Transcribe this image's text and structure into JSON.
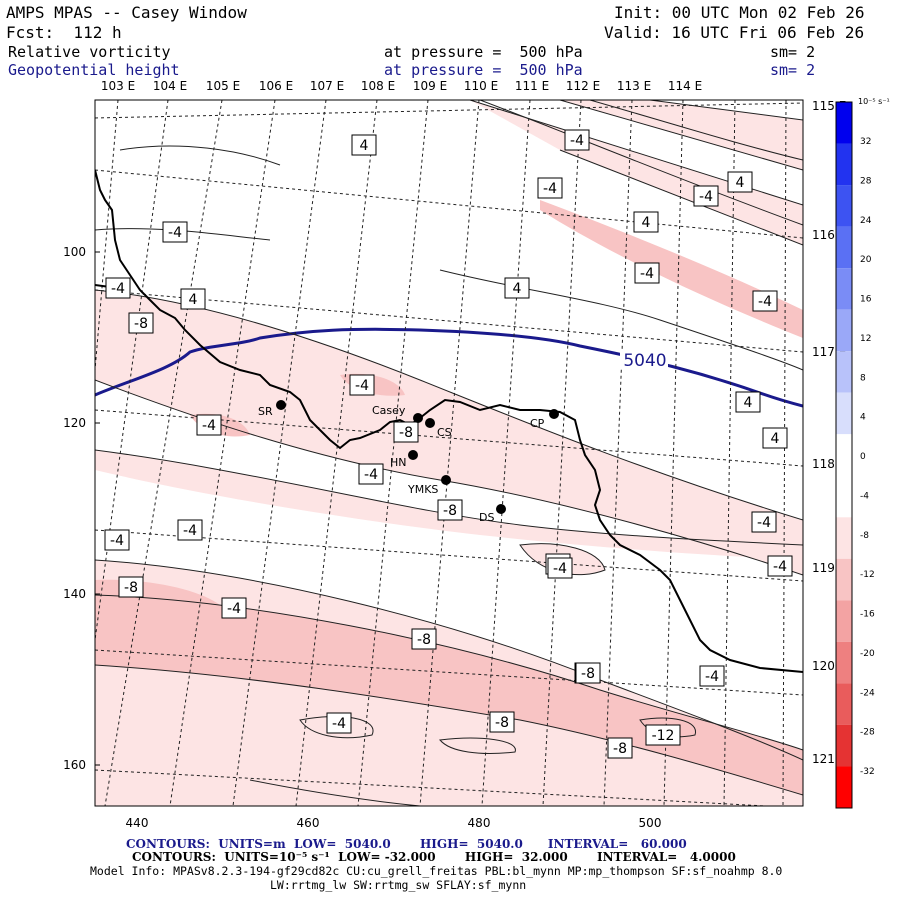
{
  "header": {
    "title": "AMPS MPAS -- Casey Window",
    "forecast": "Fcst:  112 h",
    "init": "Init: 00 UTC Mon 02 Feb 26",
    "valid": "Valid: 16 UTC Fri 06 Feb 26",
    "field1": {
      "name": "Relative vorticity",
      "pressure": "at pressure =  500 hPa",
      "smooth": "sm= 2"
    },
    "field2": {
      "name": "Geopotential height",
      "pressure": "at pressure =  500 hPa",
      "smooth": "sm= 2"
    }
  },
  "axes": {
    "top_longitudes": [
      "103 E",
      "104 E",
      "105 E",
      "106 E",
      "107 E",
      "108 E",
      "109 E",
      "110 E",
      "111 E",
      "112 E",
      "113 E",
      "114 E"
    ],
    "right_latitudes": [
      "115 E",
      "116 E",
      "117 E",
      "118 E",
      "119 E",
      "120 E",
      "121 E"
    ],
    "left_ticks": [
      "100",
      "120",
      "140",
      "160"
    ],
    "bottom_ticks": [
      "440",
      "460",
      "480",
      "500"
    ]
  },
  "colorbar": {
    "unit": "10⁻⁵ s⁻¹",
    "labels": [
      "32",
      "28",
      "24",
      "20",
      "16",
      "12",
      "8",
      "4",
      "0",
      "-4",
      "-8",
      "-12",
      "-16",
      "-20",
      "-24",
      "-28",
      "-32"
    ],
    "colors": [
      "#0000ee",
      "#2233f0",
      "#3d53f2",
      "#5a70f4",
      "#7a8cf6",
      "#9aa8f8",
      "#b8c2fa",
      "#d8defc",
      "#ffffff",
      "#ffffff",
      "#fde4e4",
      "#f8c4c4",
      "#f3a3a3",
      "#ee8080",
      "#e95c5c",
      "#e53333",
      "#ff0000"
    ]
  },
  "stations": [
    {
      "name": "SR"
    },
    {
      "name": "Casey"
    },
    {
      "name": "CS"
    },
    {
      "name": "HN"
    },
    {
      "name": "YMKS"
    },
    {
      "name": "DS"
    },
    {
      "name": "CP"
    }
  ],
  "contour_labels": {
    "geopotential": [
      "5040"
    ],
    "vorticity": [
      "4",
      "-4",
      "-4",
      "-4",
      "4",
      "-4",
      "4",
      "4",
      "-4",
      "-4",
      "4",
      "-4",
      "-8",
      "-4",
      "-4",
      "-8",
      "-4",
      "-8",
      "4",
      "4",
      "-4",
      "-4",
      "-4",
      "-4",
      "-4",
      "-8",
      "-4",
      "-8",
      "-8",
      "-8",
      "-4",
      "-8",
      "-4",
      "-12",
      "-8",
      "-4",
      "-4",
      "-4"
    ]
  },
  "footer": {
    "line1": "CONTOURS:  UNITS=m  LOW=  5040.0       HIGH=  5040.0      INTERVAL=   60.000",
    "line2": "CONTOURS:  UNITS=10⁻⁵ s⁻¹  LOW= -32.000       HIGH=  32.000       INTERVAL=   4.0000",
    "line3": "Model Info: MPASv8.2.3-194-gf29cd82c CU:cu_grell_freitas PBL:bl_mynn MP:mp_thompson SF:sf_noahmp 8.0",
    "line4": "LW:rrtmg_lw SW:rrtmg_sw SFLAY:sf_mynn"
  }
}
